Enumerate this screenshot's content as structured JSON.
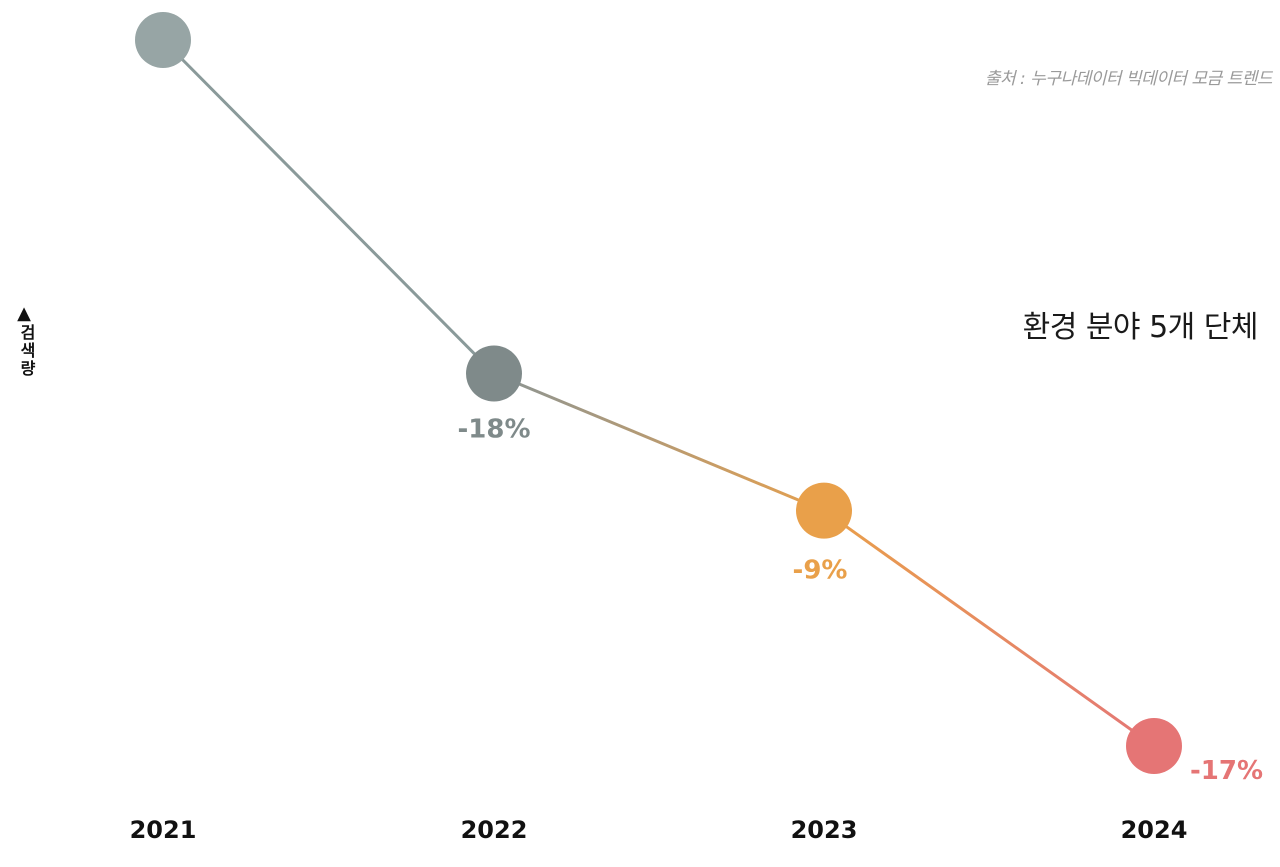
{
  "chart_data": {
    "type": "line",
    "x": [
      "2021",
      "2022",
      "2023",
      "2024"
    ],
    "series": [
      {
        "name": "환경 분야 5개 단체",
        "values": [
          100,
          82,
          74.6,
          61.9
        ]
      }
    ],
    "data_labels": [
      "",
      "-18%",
      "-9%",
      "-17%"
    ],
    "point_colors": [
      "#97a5a5",
      "#7f8a8a",
      "#e9a04a",
      "#e57575"
    ],
    "line_colors": [
      "#8a9a9a",
      "#b58a5e",
      "#e99a5e"
    ],
    "ylabel": "검색량",
    "ylabel_arrow": "▲",
    "source": "출처 : 누구나데이터 빅데이터 모금 트렌드",
    "grid": false,
    "legend": "right"
  }
}
